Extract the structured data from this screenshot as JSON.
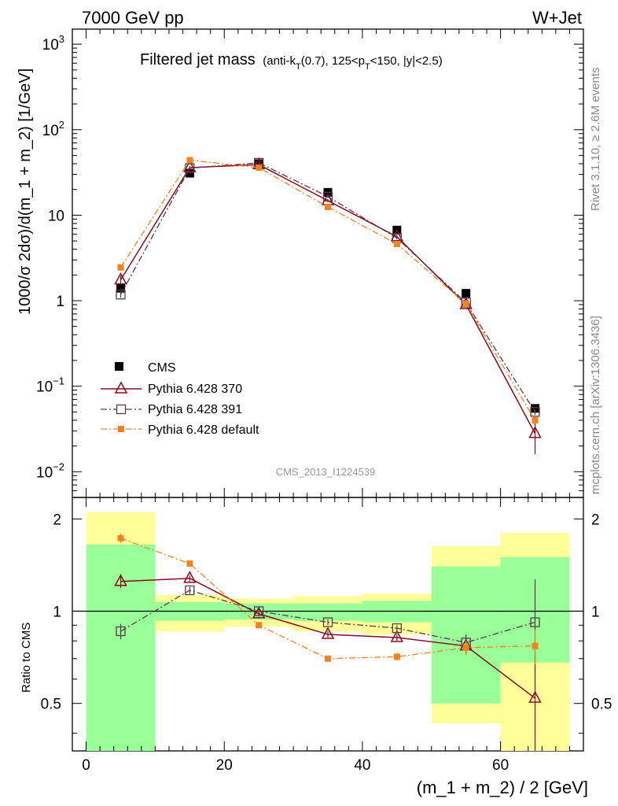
{
  "header": {
    "left_label": "7000 GeV pp",
    "right_label": "W+Jet"
  },
  "title": {
    "main": "Filtered jet mass",
    "sub_open": "(anti-k",
    "sub_T": "T",
    "sub_mid": "(0.7), 125<p",
    "sub_T2": "T",
    "sub_end": "<150, |y|<2.5)"
  },
  "side_labels": {
    "rivet": "Rivet 3.1.10, ≥ 2.6M events",
    "mcplots": "mcplots.cern.ch [arXiv:1306.3436]"
  },
  "analysis_id": "CMS_2013_I1224539",
  "chart_data": [
    {
      "type": "scatter",
      "panel": "main",
      "ylabel": "1000/σ 2dσ)/d(m_1 + m_2) [1/GeV]",
      "yscale": "log",
      "ylim": [
        0.005,
        1500
      ],
      "xlim": [
        -2,
        72
      ],
      "x": [
        5,
        15,
        25,
        35,
        45,
        55,
        65
      ],
      "y_tick_labels": [
        "10",
        "1",
        "10",
        "10^-1",
        "10^-2"
      ],
      "series": [
        {
          "name": "CMS",
          "color": "#000000",
          "marker": "square-filled",
          "values": [
            1.4,
            31,
            40,
            18.5,
            6.7,
            1.22,
            0.055
          ]
        },
        {
          "name": "Pythia 6.428 370",
          "color": "#8b0a1e",
          "marker": "triangle-open",
          "line": "solid",
          "values": [
            1.75,
            36,
            39,
            14.8,
            5.6,
            0.9,
            0.028
          ],
          "err_lo": [
            0.2,
            1.5,
            1.5,
            0.7,
            0.3,
            0.05,
            0.012
          ],
          "err_hi": [
            0.2,
            1.5,
            1.5,
            0.7,
            0.3,
            0.05,
            0.012
          ]
        },
        {
          "name": "Pythia 6.428 391",
          "color": "#5a3a4a",
          "marker": "square-open",
          "line": "dashdot",
          "values": [
            1.18,
            35.5,
            41,
            16.5,
            5.4,
            0.95,
            0.05
          ],
          "err_lo": [
            0.1,
            1.2,
            1.2,
            0.6,
            0.2,
            0.04,
            0.004
          ],
          "err_hi": [
            0.1,
            1.2,
            1.2,
            0.6,
            0.2,
            0.04,
            0.004
          ]
        },
        {
          "name": "Pythia 6.428 default",
          "color": "#f58220",
          "marker": "square-filled-small",
          "line": "dashdot",
          "values": [
            2.45,
            44,
            36,
            12.5,
            4.6,
            0.92,
            0.04
          ],
          "err_lo": [
            0.1,
            1.0,
            1.0,
            0.4,
            0.2,
            0.03,
            0.003
          ],
          "err_hi": [
            0.1,
            1.0,
            1.0,
            0.4,
            0.2,
            0.03,
            0.003
          ]
        }
      ],
      "legend_position": "bottom-left"
    },
    {
      "type": "scatter",
      "panel": "ratio",
      "ylabel": "Ratio to CMS",
      "xlabel": "(m_1 + m_2) / 2 [GeV]",
      "ylim": [
        0.35,
        2.35
      ],
      "xlim": [
        -2,
        72
      ],
      "x_ticks": [
        0,
        20,
        40,
        60
      ],
      "y_ticks": [
        0.5,
        1,
        2
      ],
      "bins": [
        [
          0,
          10
        ],
        [
          10,
          20
        ],
        [
          20,
          30
        ],
        [
          30,
          40
        ],
        [
          40,
          50
        ],
        [
          50,
          60
        ],
        [
          60,
          70
        ]
      ],
      "band_outer": [
        [
          0.35,
          2.1
        ],
        [
          0.86,
          1.13
        ],
        [
          0.89,
          1.1
        ],
        [
          0.86,
          1.12
        ],
        [
          0.84,
          1.14
        ],
        [
          0.43,
          1.63
        ],
        [
          0.35,
          1.8
        ]
      ],
      "band_inner": [
        [
          0.35,
          1.65
        ],
        [
          0.93,
          1.07
        ],
        [
          0.94,
          1.06
        ],
        [
          0.93,
          1.06
        ],
        [
          0.92,
          1.08
        ],
        [
          0.5,
          1.4
        ],
        [
          0.68,
          1.5
        ]
      ],
      "band_colors": {
        "outer": "#ffff99",
        "inner": "#99ff99"
      },
      "x": [
        5,
        15,
        25,
        35,
        45,
        55,
        65
      ],
      "series": [
        {
          "name": "Pythia 6.428 370",
          "color": "#8b0a1e",
          "marker": "triangle-open",
          "line": "solid",
          "values": [
            1.25,
            1.28,
            0.98,
            0.84,
            0.82,
            0.77,
            0.52
          ],
          "err": [
            0.06,
            0.03,
            0.02,
            0.02,
            0.02,
            0.05,
            0.2
          ]
        },
        {
          "name": "Pythia 6.428 391",
          "color": "#5a3a4a",
          "marker": "square-open",
          "line": "dashdot",
          "values": [
            0.86,
            1.17,
            1.0,
            0.92,
            0.88,
            0.79,
            0.92
          ],
          "err": [
            0.05,
            0.03,
            0.02,
            0.02,
            0.02,
            0.05,
            0.35
          ]
        },
        {
          "name": "Pythia 6.428 default",
          "color": "#f58220",
          "marker": "square-filled-small",
          "line": "dashdot",
          "values": [
            1.73,
            1.43,
            0.9,
            0.7,
            0.71,
            0.76,
            0.77
          ],
          "err": [
            0.06,
            0.02,
            0.01,
            0.01,
            0.02,
            0.04,
            0.1
          ]
        }
      ]
    }
  ],
  "legend": [
    {
      "label": "CMS"
    },
    {
      "label": "Pythia 6.428 370"
    },
    {
      "label": "Pythia 6.428 391"
    },
    {
      "label": "Pythia 6.428 default"
    }
  ],
  "axis_text": {
    "main_y_ticks": [
      {
        "base": "10",
        "exp": "3"
      },
      {
        "base": "10",
        "exp": "2"
      },
      {
        "base": "10",
        "exp": ""
      },
      {
        "base": "1",
        "exp": ""
      },
      {
        "base": "10",
        "exp": "−1"
      },
      {
        "base": "10",
        "exp": "−2"
      }
    ],
    "ratio_y_ticks": [
      "2",
      "1",
      "0.5"
    ],
    "x_ticks": [
      "0",
      "20",
      "40",
      "60"
    ]
  }
}
